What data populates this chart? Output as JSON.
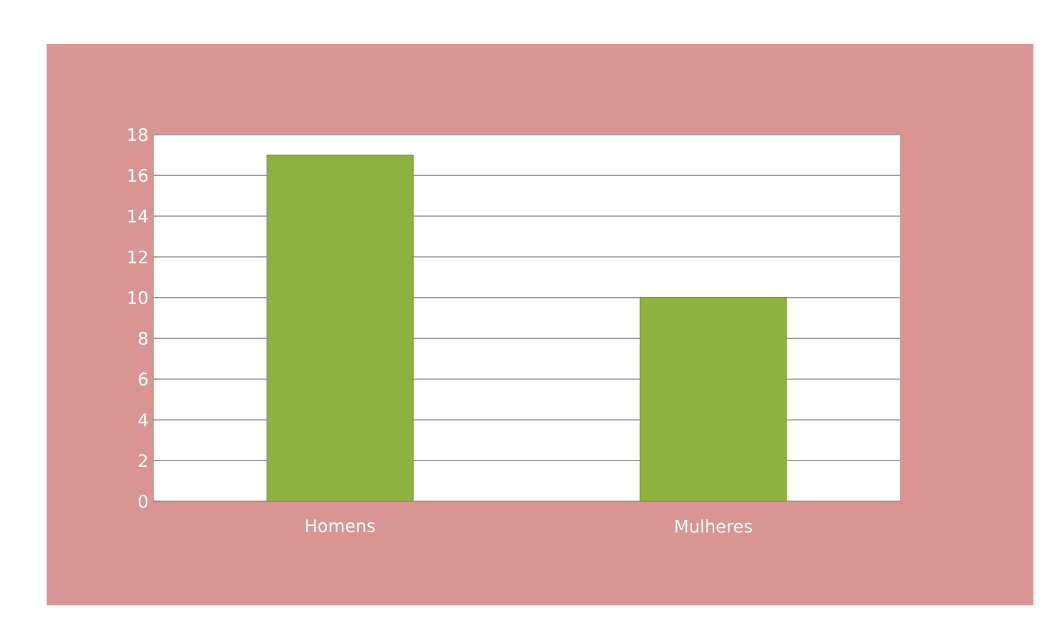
{
  "chart_data": {
    "type": "bar",
    "categories": [
      "Homens",
      "Mulheres"
    ],
    "values": [
      17,
      10
    ],
    "color": "#8db23f",
    "ylim": [
      0,
      18
    ],
    "yticks": [
      0,
      2,
      4,
      6,
      8,
      10,
      12,
      14,
      16,
      18
    ],
    "grid": "y"
  }
}
